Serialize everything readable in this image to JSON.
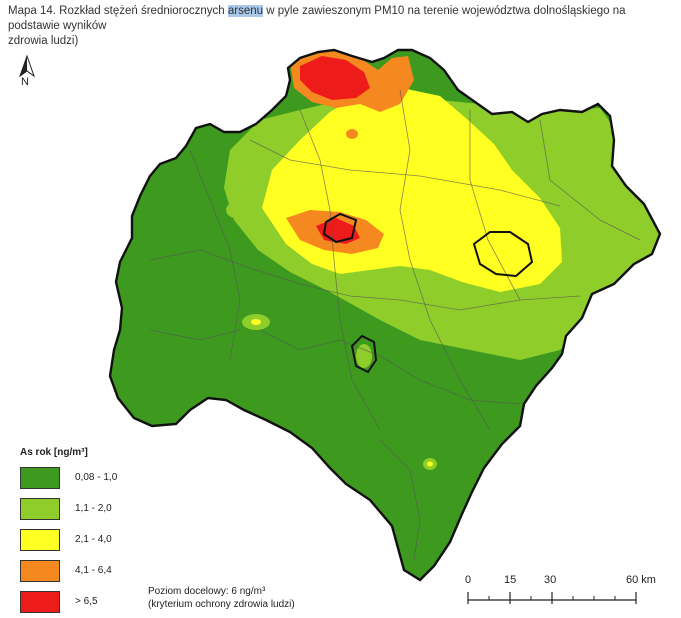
{
  "caption": {
    "part1": "Mapa 14. Rozkład stężeń średniorocznych ",
    "highlight": "arsenu",
    "part2": " w pyle zawieszonym PM10 na terenie województwa dolnośląskiego na podstawie wyników",
    "line2": "zdrowia ludzi)"
  },
  "north_label": "N",
  "legend": {
    "title": "As rok [ng/m³]",
    "items": [
      {
        "label": "0,08 - 1,0",
        "color": "#3d9a1e"
      },
      {
        "label": "1,1 - 2,0",
        "color": "#8fce2a"
      },
      {
        "label": "2,1 - 4,0",
        "color": "#ffff22"
      },
      {
        "label": "4,1 - 6,4",
        "color": "#f5881f"
      },
      {
        "label": "> 6,5",
        "color": "#ee1b1b"
      }
    ]
  },
  "note": {
    "line1": "Poziom docelowy: 6 ng/m³",
    "line2": "(kryterium ochrony zdrowia ludzi)"
  },
  "scale": {
    "labels": [
      "0",
      "15",
      "30",
      "60 km"
    ],
    "values_km": [
      0,
      15,
      30,
      60
    ]
  }
}
